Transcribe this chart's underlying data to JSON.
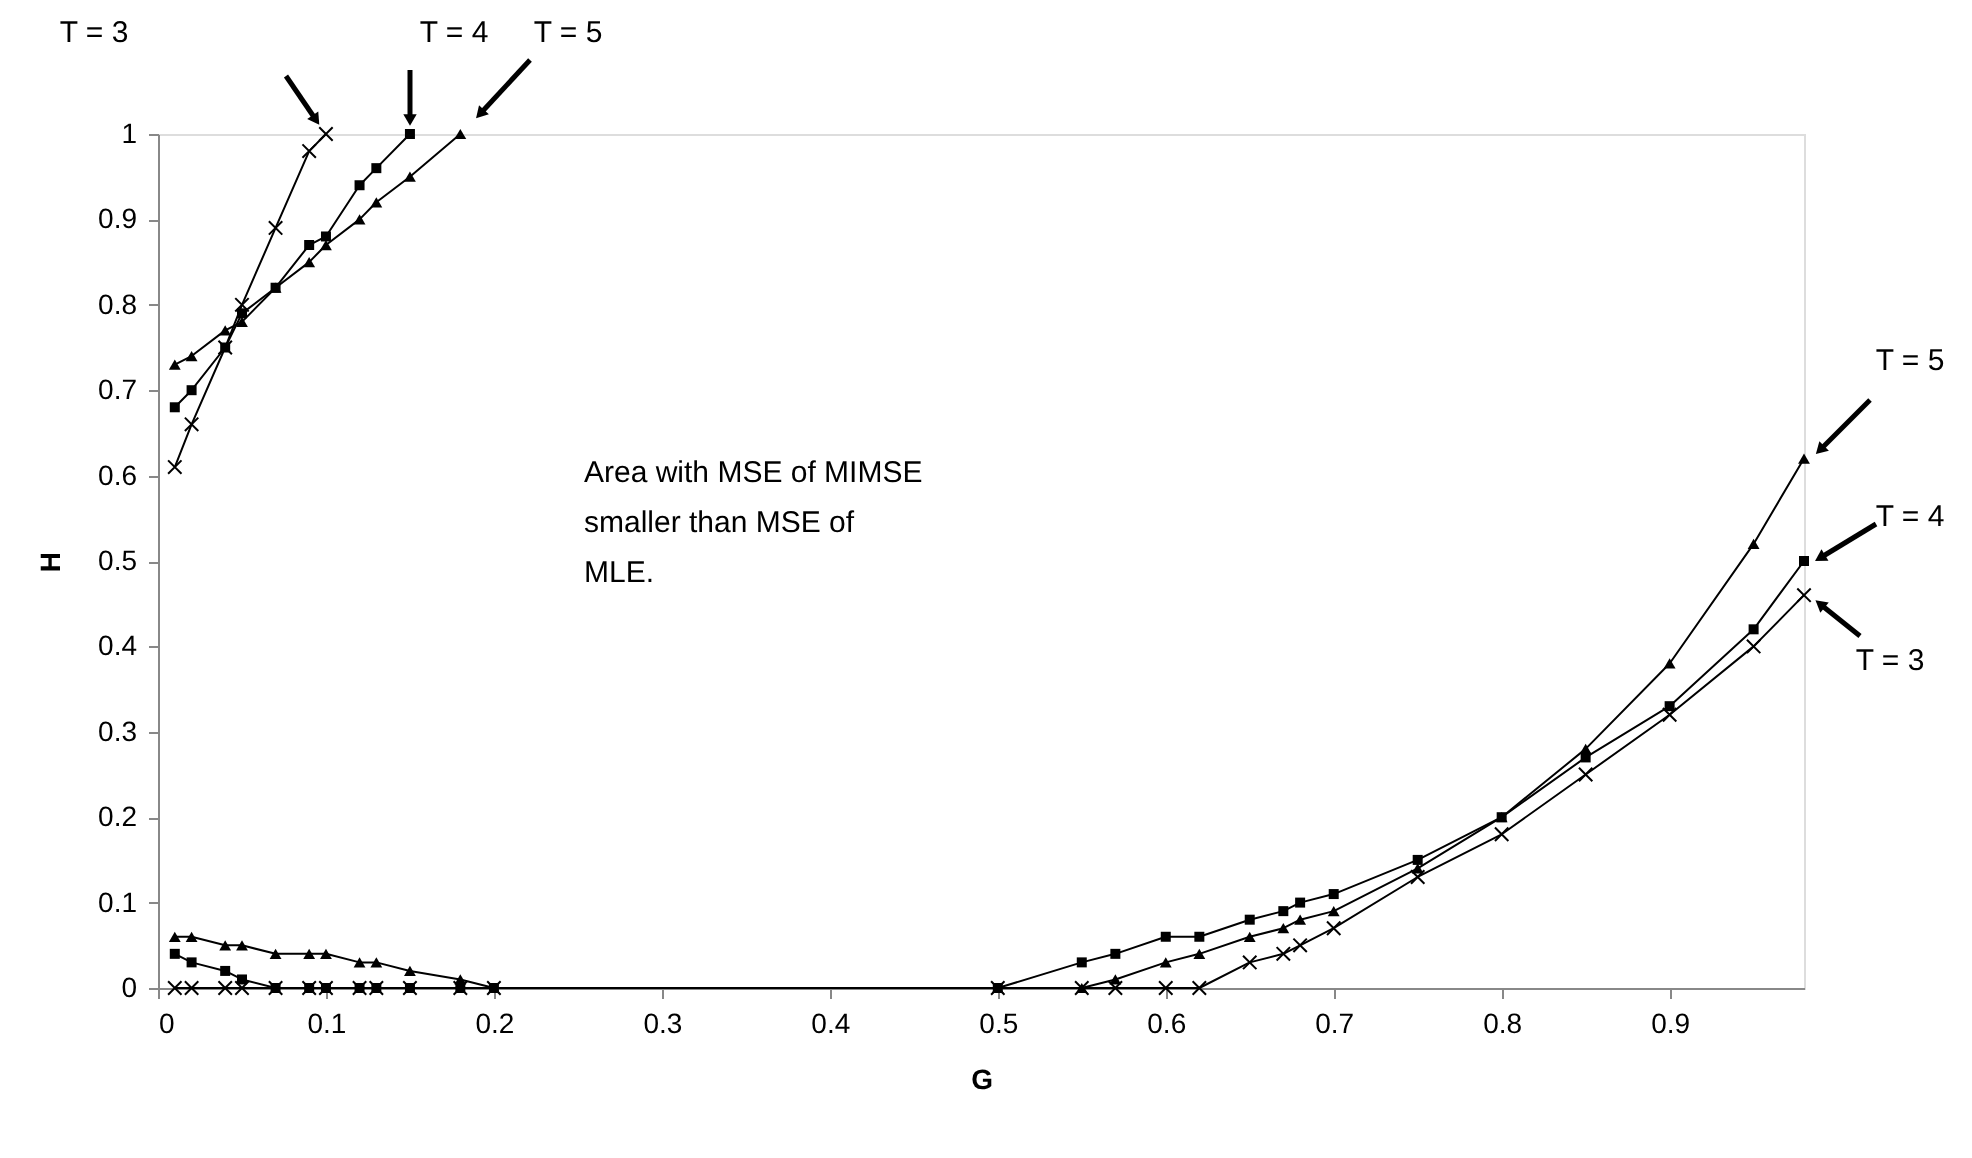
{
  "chart_data": {
    "type": "line",
    "xlabel": "G",
    "ylabel": "H",
    "xlim": [
      0,
      0.98
    ],
    "ylim": [
      0,
      1
    ],
    "xticks": [
      0,
      0.1,
      0.2,
      0.3,
      0.4,
      0.5,
      0.6,
      0.7,
      0.8,
      0.9
    ],
    "yticks": [
      0,
      0.1,
      0.2,
      0.3,
      0.4,
      0.5,
      0.6,
      0.7,
      0.8,
      0.9,
      1
    ],
    "grid": false,
    "series": [
      {
        "color": "#000000",
        "marker": "cross",
        "x": [
          0.01,
          0.02,
          0.04,
          0.05,
          0.07,
          0.09,
          0.1
        ],
        "values": [
          0.61,
          0.66,
          0.75,
          0.8,
          0.89,
          0.98,
          1.0
        ]
      },
      {
        "color": "#000000",
        "marker": "square",
        "x": [
          0.01,
          0.02,
          0.04,
          0.05,
          0.07,
          0.09,
          0.1,
          0.12,
          0.13,
          0.15
        ],
        "values": [
          0.68,
          0.7,
          0.75,
          0.79,
          0.82,
          0.87,
          0.88,
          0.94,
          0.96,
          1.0
        ]
      },
      {
        "color": "#000000",
        "marker": "triangle",
        "x": [
          0.01,
          0.02,
          0.04,
          0.05,
          0.07,
          0.09,
          0.1,
          0.12,
          0.13,
          0.15,
          0.18
        ],
        "values": [
          0.73,
          0.74,
          0.77,
          0.78,
          0.82,
          0.85,
          0.87,
          0.9,
          0.92,
          0.95,
          1.0
        ]
      },
      {
        "color": "#000000",
        "marker": "cross",
        "x": [
          0.01,
          0.02,
          0.04,
          0.05,
          0.07,
          0.09,
          0.1,
          0.12,
          0.13,
          0.15,
          0.18,
          0.2,
          0.5,
          0.55,
          0.57,
          0.6,
          0.62,
          0.65,
          0.67,
          0.68,
          0.7,
          0.75,
          0.8,
          0.85,
          0.9,
          0.95,
          0.98
        ],
        "values": [
          0,
          0,
          0,
          0,
          0,
          0,
          0,
          0,
          0,
          0,
          0,
          0,
          0,
          0,
          0,
          0,
          0,
          0.03,
          0.04,
          0.05,
          0.07,
          0.13,
          0.18,
          0.25,
          0.32,
          0.4,
          0.46
        ]
      },
      {
        "color": "#000000",
        "marker": "square",
        "x": [
          0.01,
          0.02,
          0.04,
          0.05,
          0.07,
          0.09,
          0.1,
          0.12,
          0.13,
          0.15,
          0.18,
          0.2,
          0.5,
          0.55,
          0.57,
          0.6,
          0.62,
          0.65,
          0.67,
          0.68,
          0.7,
          0.75,
          0.8,
          0.85,
          0.9,
          0.95,
          0.98
        ],
        "values": [
          0.04,
          0.03,
          0.02,
          0.01,
          0,
          0,
          0,
          0,
          0,
          0,
          0,
          0,
          0,
          0.03,
          0.04,
          0.06,
          0.06,
          0.08,
          0.09,
          0.1,
          0.11,
          0.15,
          0.2,
          0.27,
          0.33,
          0.42,
          0.5
        ]
      },
      {
        "color": "#000000",
        "marker": "triangle",
        "x": [
          0.01,
          0.02,
          0.04,
          0.05,
          0.07,
          0.09,
          0.1,
          0.12,
          0.13,
          0.15,
          0.18,
          0.2,
          0.5,
          0.55,
          0.57,
          0.6,
          0.62,
          0.65,
          0.67,
          0.68,
          0.7,
          0.75,
          0.8,
          0.85,
          0.9,
          0.95,
          0.98
        ],
        "values": [
          0.06,
          0.06,
          0.05,
          0.05,
          0.04,
          0.04,
          0.04,
          0.03,
          0.03,
          0.02,
          0.01,
          0,
          0,
          0,
          0.01,
          0.03,
          0.04,
          0.06,
          0.07,
          0.08,
          0.09,
          0.14,
          0.2,
          0.28,
          0.38,
          0.52,
          0.62
        ]
      }
    ],
    "annotations": [
      "T = 3",
      "T = 4",
      "T = 5",
      "T = 5",
      "T = 4",
      "T = 3",
      "Area with MSE of MIMSE\nsmaller than MSE of\nMLE."
    ]
  }
}
